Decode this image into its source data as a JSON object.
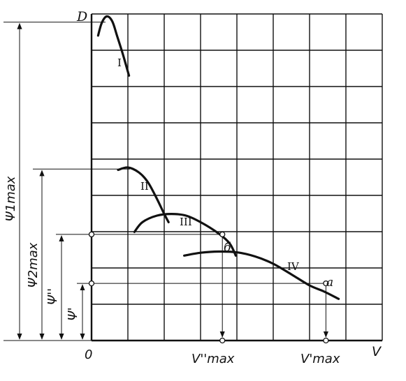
{
  "chart_data": {
    "type": "line",
    "ylabel": "D",
    "xlabel": "V",
    "origin_label": "0",
    "grid": true,
    "xlim": [
      0,
      8
    ],
    "ylim": [
      0,
      8
    ],
    "series": [
      {
        "name": "I",
        "points": [
          [
            0.18,
            7.47
          ],
          [
            0.28,
            7.78
          ],
          [
            0.42,
            7.94
          ],
          [
            0.57,
            7.82
          ],
          [
            0.7,
            7.47
          ],
          [
            0.85,
            7.05
          ],
          [
            1.03,
            6.49
          ]
        ]
      },
      {
        "name": "II",
        "points": [
          [
            0.73,
            4.18
          ],
          [
            1.0,
            4.24
          ],
          [
            1.3,
            4.12
          ],
          [
            1.55,
            3.88
          ],
          [
            1.8,
            3.47
          ],
          [
            2.0,
            3.1
          ],
          [
            2.12,
            2.9
          ]
        ]
      },
      {
        "name": "III",
        "points": [
          [
            1.18,
            2.66
          ],
          [
            1.4,
            2.9
          ],
          [
            1.8,
            3.06
          ],
          [
            2.2,
            3.1
          ],
          [
            2.6,
            3.06
          ],
          [
            3.0,
            2.9
          ],
          [
            3.5,
            2.62
          ],
          [
            3.8,
            2.38
          ],
          [
            3.97,
            2.08
          ]
        ]
      },
      {
        "name": "IV",
        "points": [
          [
            2.55,
            2.08
          ],
          [
            3.0,
            2.15
          ],
          [
            3.5,
            2.18
          ],
          [
            4.0,
            2.16
          ],
          [
            4.5,
            2.06
          ],
          [
            5.0,
            1.88
          ],
          [
            5.5,
            1.62
          ],
          [
            6.0,
            1.35
          ],
          [
            6.4,
            1.2
          ],
          [
            6.8,
            1.02
          ]
        ]
      }
    ],
    "annotations": {
      "levels": [
        {
          "label": "Ψ1max",
          "y": 7.8
        },
        {
          "label": "Ψ2max",
          "y": 4.2
        },
        {
          "label": "Ψ''",
          "y": 2.6
        },
        {
          "label": "Ψ'",
          "y": 1.4
        }
      ],
      "points": [
        {
          "label": "б",
          "x": 3.6,
          "y": 2.6
        },
        {
          "label": "a",
          "x": 6.45,
          "y": 1.4
        }
      ],
      "x_marks": [
        {
          "label": "V''max",
          "x": 3.6
        },
        {
          "label": "V'max",
          "x": 6.45
        }
      ]
    }
  }
}
